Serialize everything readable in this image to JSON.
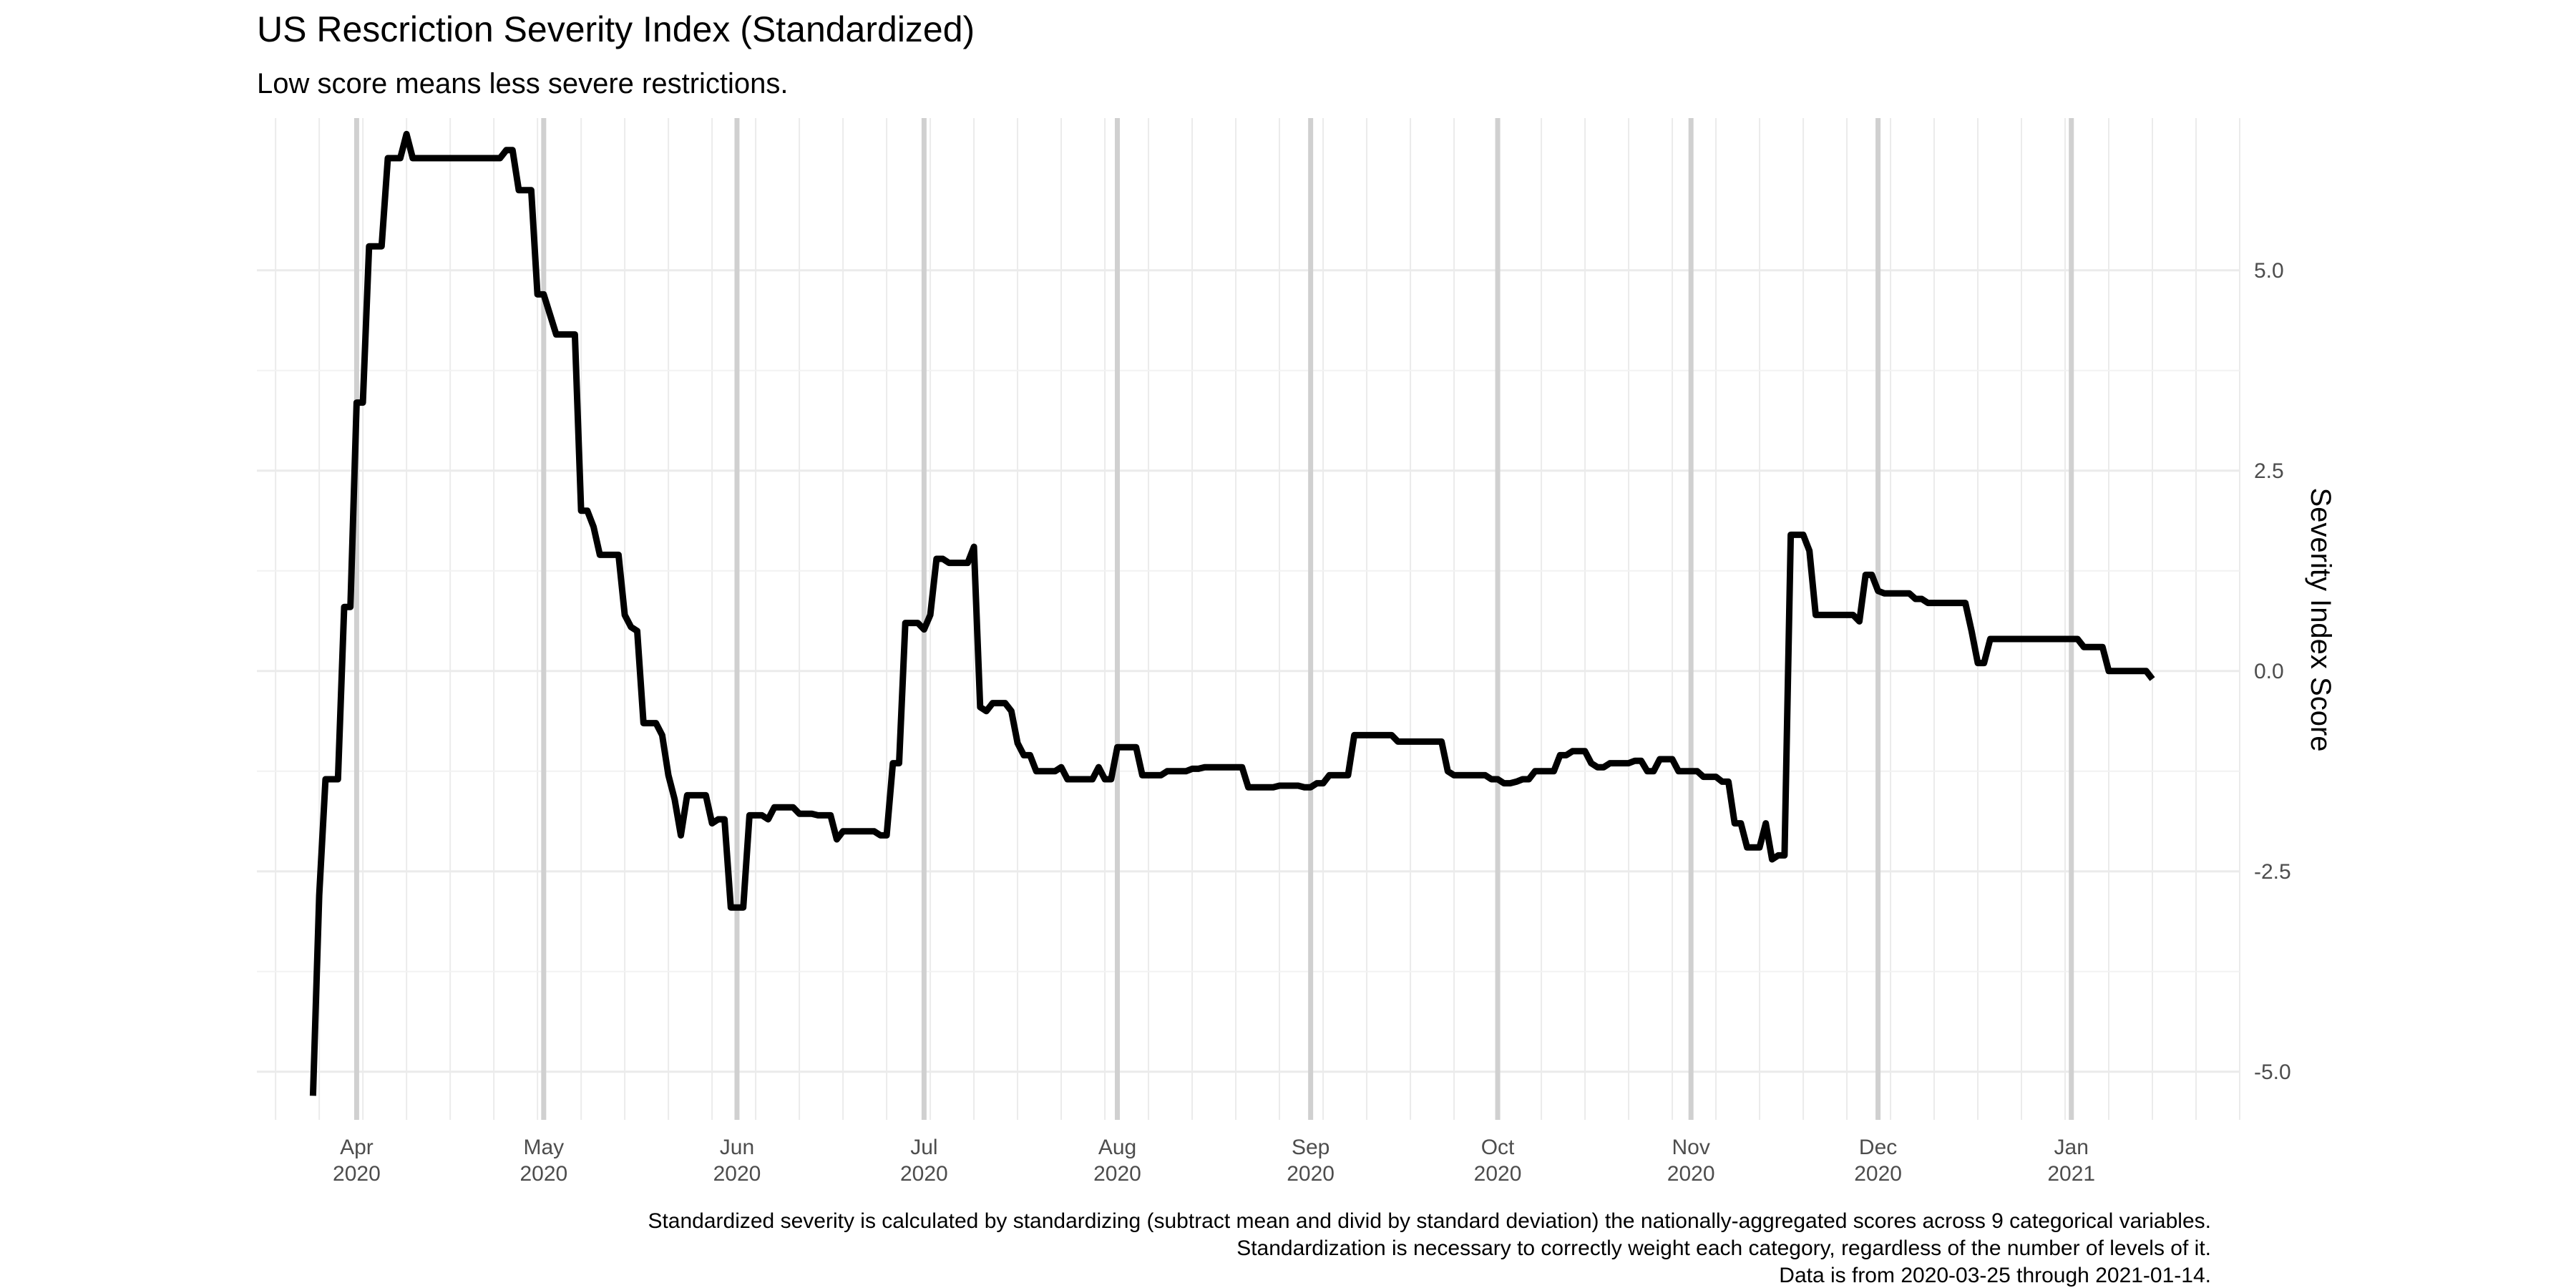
{
  "chart_data": {
    "type": "line",
    "title": "US Rescriction Severity Index (Standardized)",
    "subtitle": "Low score means less severe restrictions.",
    "xlabel": "",
    "ylabel": "Severity Index Score",
    "y_axis_position": "right",
    "ylim": [
      -5.6,
      6.9
    ],
    "xlim": [
      "2020-03-16",
      "2021-01-28"
    ],
    "grid": true,
    "y_ticks": [
      {
        "value": 5.0,
        "label": "5.0"
      },
      {
        "value": 2.5,
        "label": "2.5"
      },
      {
        "value": 0.0,
        "label": "0.0"
      },
      {
        "value": -2.5,
        "label": "-2.5"
      },
      {
        "value": -5.0,
        "label": "-5.0"
      }
    ],
    "x_ticks": [
      {
        "date": "2020-04-01",
        "month": "Apr",
        "year": "2020"
      },
      {
        "date": "2020-05-01",
        "month": "May",
        "year": "2020"
      },
      {
        "date": "2020-06-01",
        "month": "Jun",
        "year": "2020"
      },
      {
        "date": "2020-07-01",
        "month": "Jul",
        "year": "2020"
      },
      {
        "date": "2020-08-01",
        "month": "Aug",
        "year": "2020"
      },
      {
        "date": "2020-09-01",
        "month": "Sep",
        "year": "2020"
      },
      {
        "date": "2020-10-01",
        "month": "Oct",
        "year": "2020"
      },
      {
        "date": "2020-11-01",
        "month": "Nov",
        "year": "2020"
      },
      {
        "date": "2020-12-01",
        "month": "Dec",
        "year": "2020"
      },
      {
        "date": "2021-01-01",
        "month": "Jan",
        "year": "2021"
      }
    ],
    "series": [
      {
        "color": "#000000",
        "points": [
          [
            "2020-03-25",
            -5.3
          ],
          [
            "2020-03-26",
            -2.8
          ],
          [
            "2020-03-27",
            -1.35
          ],
          [
            "2020-03-28",
            -1.35
          ],
          [
            "2020-03-29",
            -1.35
          ],
          [
            "2020-03-30",
            0.8
          ],
          [
            "2020-03-31",
            0.8
          ],
          [
            "2020-04-01",
            3.35
          ],
          [
            "2020-04-02",
            3.35
          ],
          [
            "2020-04-03",
            5.3
          ],
          [
            "2020-04-04",
            5.3
          ],
          [
            "2020-04-05",
            5.3
          ],
          [
            "2020-04-06",
            6.4
          ],
          [
            "2020-04-07",
            6.4
          ],
          [
            "2020-04-08",
            6.4
          ],
          [
            "2020-04-09",
            6.7
          ],
          [
            "2020-04-10",
            6.4
          ],
          [
            "2020-04-15",
            6.4
          ],
          [
            "2020-04-20",
            6.4
          ],
          [
            "2020-04-24",
            6.4
          ],
          [
            "2020-04-25",
            6.5
          ],
          [
            "2020-04-26",
            6.5
          ],
          [
            "2020-04-27",
            6.0
          ],
          [
            "2020-04-28",
            6.0
          ],
          [
            "2020-04-29",
            6.0
          ],
          [
            "2020-04-30",
            4.7
          ],
          [
            "2020-05-01",
            4.7
          ],
          [
            "2020-05-03",
            4.2
          ],
          [
            "2020-05-04",
            4.2
          ],
          [
            "2020-05-05",
            4.2
          ],
          [
            "2020-05-06",
            4.2
          ],
          [
            "2020-05-07",
            2.0
          ],
          [
            "2020-05-08",
            2.0
          ],
          [
            "2020-05-09",
            1.8
          ],
          [
            "2020-05-10",
            1.45
          ],
          [
            "2020-05-12",
            1.45
          ],
          [
            "2020-05-13",
            1.45
          ],
          [
            "2020-05-14",
            0.7
          ],
          [
            "2020-05-15",
            0.55
          ],
          [
            "2020-05-16",
            0.5
          ],
          [
            "2020-05-17",
            -0.65
          ],
          [
            "2020-05-18",
            -0.65
          ],
          [
            "2020-05-19",
            -0.65
          ],
          [
            "2020-05-20",
            -0.8
          ],
          [
            "2020-05-21",
            -1.3
          ],
          [
            "2020-05-22",
            -1.6
          ],
          [
            "2020-05-23",
            -2.05
          ],
          [
            "2020-05-24",
            -1.55
          ],
          [
            "2020-05-25",
            -1.55
          ],
          [
            "2020-05-26",
            -1.55
          ],
          [
            "2020-05-27",
            -1.55
          ],
          [
            "2020-05-28",
            -1.9
          ],
          [
            "2020-05-29",
            -1.85
          ],
          [
            "2020-05-30",
            -1.85
          ],
          [
            "2020-05-31",
            -2.95
          ],
          [
            "2020-06-01",
            -2.95
          ],
          [
            "2020-06-02",
            -2.95
          ],
          [
            "2020-06-03",
            -1.8
          ],
          [
            "2020-06-04",
            -1.8
          ],
          [
            "2020-06-05",
            -1.8
          ],
          [
            "2020-06-06",
            -1.85
          ],
          [
            "2020-06-07",
            -1.7
          ],
          [
            "2020-06-08",
            -1.7
          ],
          [
            "2020-06-09",
            -1.7
          ],
          [
            "2020-06-10",
            -1.7
          ],
          [
            "2020-06-11",
            -1.78
          ],
          [
            "2020-06-12",
            -1.78
          ],
          [
            "2020-06-13",
            -1.78
          ],
          [
            "2020-06-14",
            -1.8
          ],
          [
            "2020-06-15",
            -1.8
          ],
          [
            "2020-06-16",
            -1.8
          ],
          [
            "2020-06-17",
            -2.1
          ],
          [
            "2020-06-18",
            -2.0
          ],
          [
            "2020-06-19",
            -2.0
          ],
          [
            "2020-06-20",
            -2.0
          ],
          [
            "2020-06-21",
            -2.0
          ],
          [
            "2020-06-22",
            -2.0
          ],
          [
            "2020-06-23",
            -2.0
          ],
          [
            "2020-06-24",
            -2.05
          ],
          [
            "2020-06-25",
            -2.05
          ],
          [
            "2020-06-26",
            -1.15
          ],
          [
            "2020-06-27",
            -1.15
          ],
          [
            "2020-06-28",
            0.6
          ],
          [
            "2020-06-29",
            0.6
          ],
          [
            "2020-06-30",
            0.6
          ],
          [
            "2020-07-01",
            0.52
          ],
          [
            "2020-07-02",
            0.7
          ],
          [
            "2020-07-03",
            1.4
          ],
          [
            "2020-07-04",
            1.4
          ],
          [
            "2020-07-05",
            1.35
          ],
          [
            "2020-07-06",
            1.35
          ],
          [
            "2020-07-07",
            1.35
          ],
          [
            "2020-07-08",
            1.35
          ],
          [
            "2020-07-09",
            1.55
          ],
          [
            "2020-07-10",
            -0.45
          ],
          [
            "2020-07-11",
            -0.5
          ],
          [
            "2020-07-12",
            -0.4
          ],
          [
            "2020-07-13",
            -0.4
          ],
          [
            "2020-07-14",
            -0.4
          ],
          [
            "2020-07-15",
            -0.5
          ],
          [
            "2020-07-16",
            -0.9
          ],
          [
            "2020-07-17",
            -1.05
          ],
          [
            "2020-07-18",
            -1.05
          ],
          [
            "2020-07-19",
            -1.25
          ],
          [
            "2020-07-20",
            -1.25
          ],
          [
            "2020-07-21",
            -1.25
          ],
          [
            "2020-07-22",
            -1.25
          ],
          [
            "2020-07-23",
            -1.2
          ],
          [
            "2020-07-24",
            -1.35
          ],
          [
            "2020-07-25",
            -1.35
          ],
          [
            "2020-07-26",
            -1.35
          ],
          [
            "2020-07-27",
            -1.35
          ],
          [
            "2020-07-28",
            -1.35
          ],
          [
            "2020-07-29",
            -1.2
          ],
          [
            "2020-07-30",
            -1.35
          ],
          [
            "2020-07-31",
            -1.35
          ],
          [
            "2020-08-01",
            -0.95
          ],
          [
            "2020-08-02",
            -0.95
          ],
          [
            "2020-08-03",
            -0.95
          ],
          [
            "2020-08-04",
            -0.95
          ],
          [
            "2020-08-05",
            -1.3
          ],
          [
            "2020-08-06",
            -1.3
          ],
          [
            "2020-08-07",
            -1.3
          ],
          [
            "2020-08-08",
            -1.3
          ],
          [
            "2020-08-09",
            -1.25
          ],
          [
            "2020-08-10",
            -1.25
          ],
          [
            "2020-08-11",
            -1.25
          ],
          [
            "2020-08-12",
            -1.25
          ],
          [
            "2020-08-13",
            -1.22
          ],
          [
            "2020-08-14",
            -1.22
          ],
          [
            "2020-08-15",
            -1.2
          ],
          [
            "2020-08-16",
            -1.2
          ],
          [
            "2020-08-20",
            -1.2
          ],
          [
            "2020-08-21",
            -1.2
          ],
          [
            "2020-08-22",
            -1.45
          ],
          [
            "2020-08-23",
            -1.45
          ],
          [
            "2020-08-24",
            -1.45
          ],
          [
            "2020-08-25",
            -1.45
          ],
          [
            "2020-08-26",
            -1.45
          ],
          [
            "2020-08-27",
            -1.43
          ],
          [
            "2020-08-28",
            -1.43
          ],
          [
            "2020-08-29",
            -1.43
          ],
          [
            "2020-08-30",
            -1.43
          ],
          [
            "2020-08-31",
            -1.45
          ],
          [
            "2020-09-01",
            -1.45
          ],
          [
            "2020-09-02",
            -1.4
          ],
          [
            "2020-09-03",
            -1.4
          ],
          [
            "2020-09-04",
            -1.3
          ],
          [
            "2020-09-05",
            -1.3
          ],
          [
            "2020-09-06",
            -1.3
          ],
          [
            "2020-09-07",
            -1.3
          ],
          [
            "2020-09-08",
            -0.8
          ],
          [
            "2020-09-09",
            -0.8
          ],
          [
            "2020-09-10",
            -0.8
          ],
          [
            "2020-09-12",
            -0.8
          ],
          [
            "2020-09-13",
            -0.8
          ],
          [
            "2020-09-14",
            -0.8
          ],
          [
            "2020-09-15",
            -0.88
          ],
          [
            "2020-09-16",
            -0.88
          ],
          [
            "2020-09-18",
            -0.88
          ],
          [
            "2020-09-20",
            -0.88
          ],
          [
            "2020-09-22",
            -0.88
          ],
          [
            "2020-09-23",
            -1.25
          ],
          [
            "2020-09-24",
            -1.3
          ],
          [
            "2020-09-25",
            -1.3
          ],
          [
            "2020-09-28",
            -1.3
          ],
          [
            "2020-09-29",
            -1.3
          ],
          [
            "2020-09-30",
            -1.35
          ],
          [
            "2020-10-01",
            -1.35
          ],
          [
            "2020-10-02",
            -1.4
          ],
          [
            "2020-10-03",
            -1.4
          ],
          [
            "2020-10-04",
            -1.38
          ],
          [
            "2020-10-05",
            -1.35
          ],
          [
            "2020-10-06",
            -1.35
          ],
          [
            "2020-10-07",
            -1.25
          ],
          [
            "2020-10-08",
            -1.25
          ],
          [
            "2020-10-09",
            -1.25
          ],
          [
            "2020-10-10",
            -1.25
          ],
          [
            "2020-10-11",
            -1.05
          ],
          [
            "2020-10-12",
            -1.05
          ],
          [
            "2020-10-13",
            -1.0
          ],
          [
            "2020-10-14",
            -1.0
          ],
          [
            "2020-10-15",
            -1.0
          ],
          [
            "2020-10-16",
            -1.15
          ],
          [
            "2020-10-17",
            -1.2
          ],
          [
            "2020-10-18",
            -1.2
          ],
          [
            "2020-10-19",
            -1.15
          ],
          [
            "2020-10-20",
            -1.15
          ],
          [
            "2020-10-21",
            -1.15
          ],
          [
            "2020-10-22",
            -1.15
          ],
          [
            "2020-10-23",
            -1.12
          ],
          [
            "2020-10-24",
            -1.12
          ],
          [
            "2020-10-25",
            -1.25
          ],
          [
            "2020-10-26",
            -1.25
          ],
          [
            "2020-10-27",
            -1.1
          ],
          [
            "2020-10-28",
            -1.1
          ],
          [
            "2020-10-29",
            -1.1
          ],
          [
            "2020-10-30",
            -1.25
          ],
          [
            "2020-10-31",
            -1.25
          ],
          [
            "2020-11-01",
            -1.25
          ],
          [
            "2020-11-02",
            -1.25
          ],
          [
            "2020-11-03",
            -1.32
          ],
          [
            "2020-11-04",
            -1.32
          ],
          [
            "2020-11-05",
            -1.32
          ],
          [
            "2020-11-06",
            -1.38
          ],
          [
            "2020-11-07",
            -1.38
          ],
          [
            "2020-11-08",
            -1.9
          ],
          [
            "2020-11-09",
            -1.9
          ],
          [
            "2020-11-10",
            -2.2
          ],
          [
            "2020-11-11",
            -2.2
          ],
          [
            "2020-11-12",
            -2.2
          ],
          [
            "2020-11-13",
            -1.9
          ],
          [
            "2020-11-14",
            -2.35
          ],
          [
            "2020-11-15",
            -2.3
          ],
          [
            "2020-11-16",
            -2.3
          ],
          [
            "2020-11-17",
            1.7
          ],
          [
            "2020-11-18",
            1.7
          ],
          [
            "2020-11-19",
            1.7
          ],
          [
            "2020-11-20",
            1.5
          ],
          [
            "2020-11-21",
            0.7
          ],
          [
            "2020-11-22",
            0.7
          ],
          [
            "2020-11-23",
            0.7
          ],
          [
            "2020-11-24",
            0.7
          ],
          [
            "2020-11-25",
            0.7
          ],
          [
            "2020-11-26",
            0.7
          ],
          [
            "2020-11-27",
            0.7
          ],
          [
            "2020-11-28",
            0.62
          ],
          [
            "2020-11-29",
            1.2
          ],
          [
            "2020-11-30",
            1.2
          ],
          [
            "2020-12-01",
            1.0
          ],
          [
            "2020-12-02",
            0.97
          ],
          [
            "2020-12-03",
            0.97
          ],
          [
            "2020-12-04",
            0.97
          ],
          [
            "2020-12-05",
            0.97
          ],
          [
            "2020-12-06",
            0.97
          ],
          [
            "2020-12-07",
            0.9
          ],
          [
            "2020-12-08",
            0.9
          ],
          [
            "2020-12-09",
            0.85
          ],
          [
            "2020-12-10",
            0.85
          ],
          [
            "2020-12-11",
            0.85
          ],
          [
            "2020-12-12",
            0.85
          ],
          [
            "2020-12-13",
            0.85
          ],
          [
            "2020-12-14",
            0.85
          ],
          [
            "2020-12-15",
            0.85
          ],
          [
            "2020-12-16",
            0.5
          ],
          [
            "2020-12-17",
            0.1
          ],
          [
            "2020-12-18",
            0.1
          ],
          [
            "2020-12-19",
            0.4
          ],
          [
            "2020-12-20",
            0.4
          ],
          [
            "2020-12-25",
            0.4
          ],
          [
            "2020-12-30",
            0.4
          ],
          [
            "2021-01-02",
            0.4
          ],
          [
            "2021-01-03",
            0.3
          ],
          [
            "2021-01-04",
            0.3
          ],
          [
            "2021-01-05",
            0.3
          ],
          [
            "2021-01-06",
            0.3
          ],
          [
            "2021-01-07",
            0.0
          ],
          [
            "2021-01-08",
            0.0
          ],
          [
            "2021-01-10",
            0.0
          ],
          [
            "2021-01-12",
            0.0
          ],
          [
            "2021-01-13",
            0.0
          ],
          [
            "2021-01-14",
            -0.1
          ]
        ]
      }
    ],
    "caption_lines": [
      "Standardized severity is calculated by standardizing (subtract mean and divid by standard deviation) the nationally-aggregated scores across 9 categorical variables.",
      "Standardization is necessary to correctly weight each category, regardless of the number of levels of it.",
      "Data is from 2020-03-25 through 2021-01-14."
    ]
  }
}
